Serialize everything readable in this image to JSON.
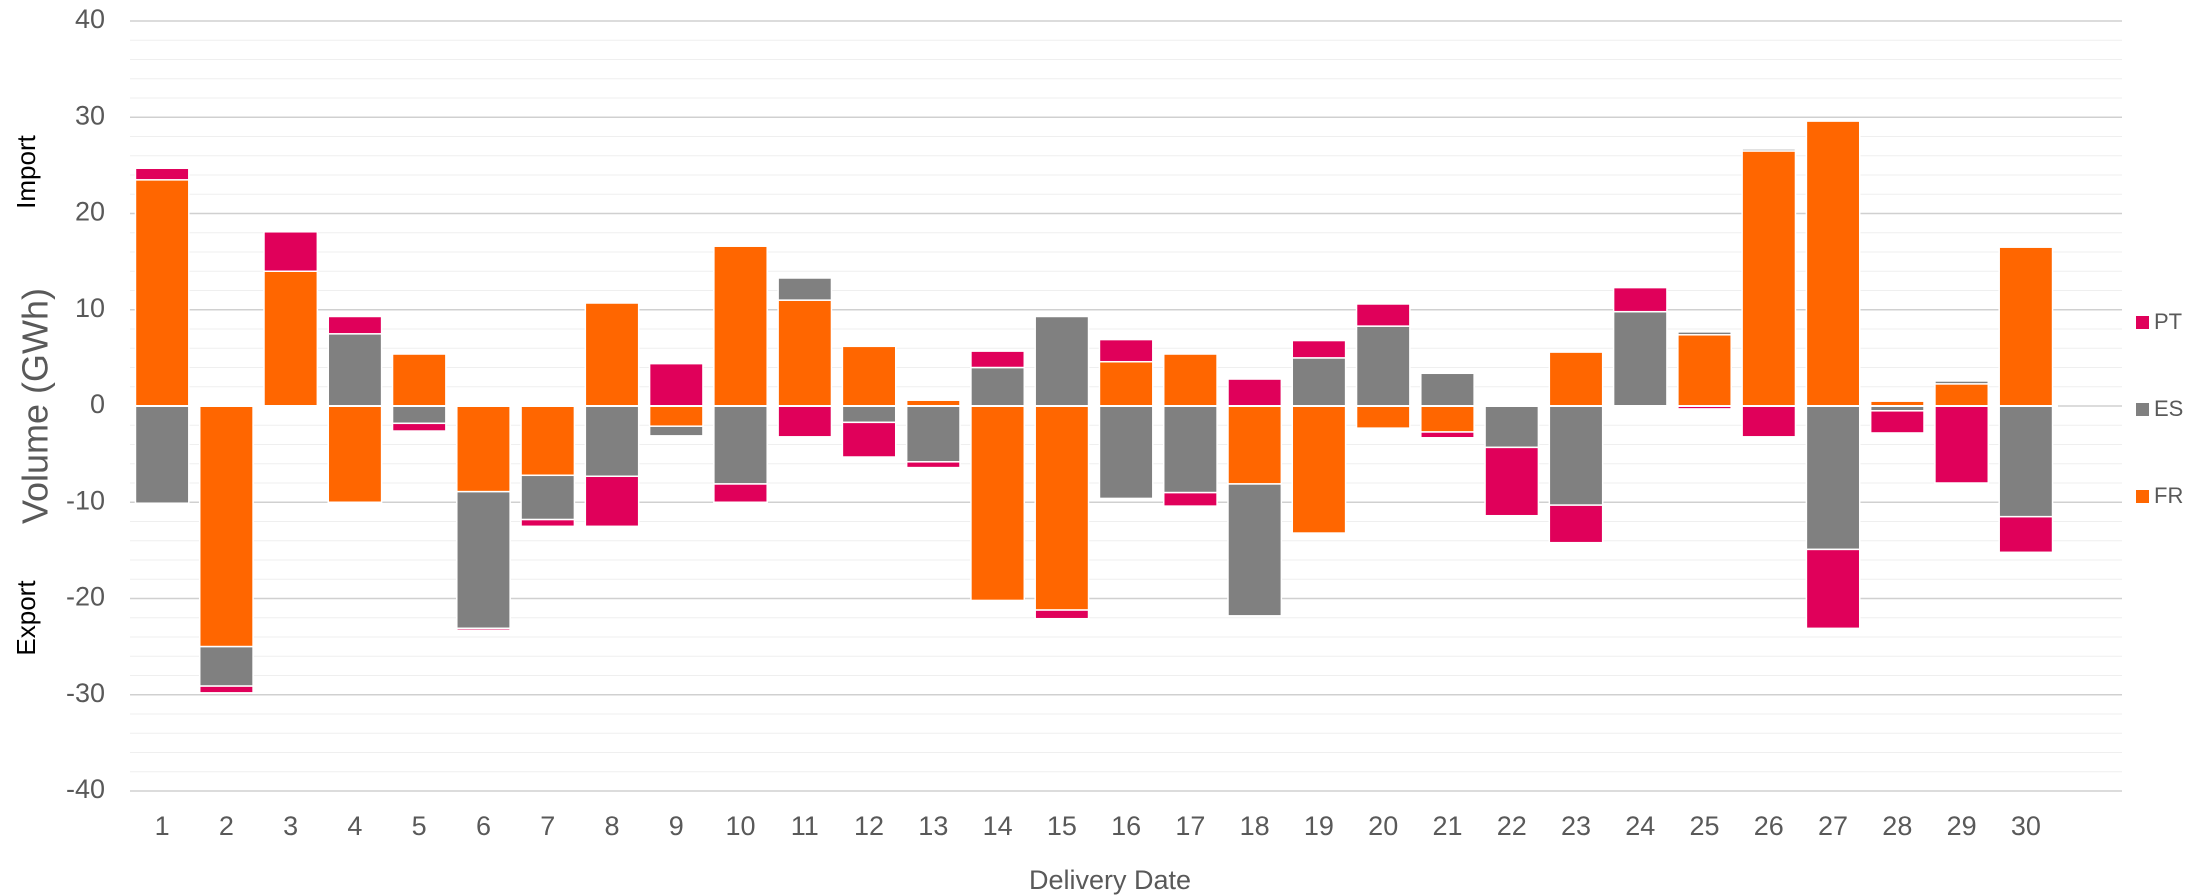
{
  "chart_data": {
    "type": "stacked_bar",
    "x_label": "Delivery Date",
    "y_label": "Volume (GWh)",
    "annotations": [
      "Import",
      "Export"
    ],
    "categories": [
      "1",
      "2",
      "3",
      "4",
      "5",
      "6",
      "7",
      "8",
      "9",
      "10",
      "11",
      "12",
      "13",
      "14",
      "15",
      "16",
      "17",
      "18",
      "19",
      "20",
      "21",
      "22",
      "23",
      "24",
      "25",
      "26",
      "27",
      "28",
      "29",
      "30"
    ],
    "series": [
      {
        "name": "FR",
        "color": "#ff6600",
        "values": [
          23.5,
          -25,
          14,
          -10,
          5.4,
          -8.9,
          -7.2,
          10.7,
          -2.1,
          16.6,
          11.0,
          6.2,
          0.6,
          -20.2,
          -21.2,
          4.6,
          5.4,
          -8.1,
          -13.2,
          -2.3,
          -2.7,
          0,
          5.6,
          0,
          7.4,
          26.5,
          29.6,
          0.5,
          2.3,
          16.5
        ]
      },
      {
        "name": "ES",
        "color": "#808080",
        "values": [
          -10.1,
          -4.1,
          0,
          7.5,
          -1.8,
          -14.2,
          -4.6,
          -7.3,
          -1.0,
          -8.1,
          2.3,
          -1.7,
          -5.8,
          4.0,
          9.3,
          -9.6,
          -9.0,
          -13.7,
          5.0,
          8.3,
          3.4,
          -4.3,
          -10.3,
          9.8,
          0.3,
          0.2,
          -14.9,
          -0.5,
          0.3,
          -11.5
        ]
      },
      {
        "name": "PT",
        "color": "#e0005a",
        "values": [
          1.2,
          -0.7,
          4.1,
          1.8,
          -0.8,
          -0.2,
          -0.7,
          -5.2,
          4.4,
          -1.9,
          -3.2,
          -3.6,
          -0.6,
          1.7,
          -0.9,
          2.3,
          -1.4,
          2.8,
          1.8,
          2.3,
          -0.6,
          -7.1,
          -3.9,
          2.5,
          -0.3,
          -3.2,
          -8.2,
          -2.3,
          -8.0,
          -3.7
        ]
      }
    ],
    "ylim": [
      -40,
      40
    ],
    "yticks": [
      -40,
      -30,
      -20,
      -10,
      0,
      10,
      20,
      30,
      40
    ],
    "yminorticks": [
      -38,
      -36,
      -34,
      -32,
      -28,
      -26,
      -24,
      -22,
      -18,
      -16,
      -14,
      -12,
      -8,
      -6,
      -4,
      -2,
      2,
      4,
      6,
      8,
      12,
      14,
      16,
      18,
      22,
      24,
      26,
      28,
      32,
      34,
      36,
      38
    ],
    "grid": true,
    "legend": "right"
  }
}
